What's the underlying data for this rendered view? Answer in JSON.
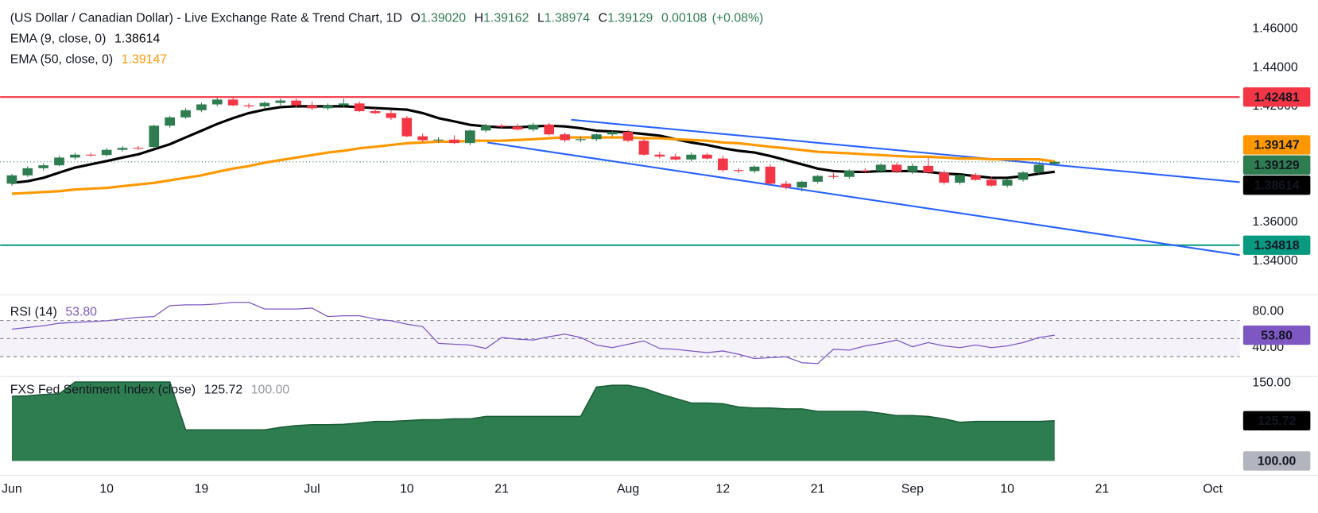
{
  "chart_data": [
    {
      "type": "candlestick",
      "title": "(US Dollar / Canadian Dollar) - Live Exchange Rate & Trend Chart, 1D",
      "ohlc_legend": [
        {
          "label": "O",
          "value": "1.39020"
        },
        {
          "label": "H",
          "value": "1.39162"
        },
        {
          "label": "L",
          "value": "1.38974"
        },
        {
          "label": "C",
          "value": "1.39129"
        }
      ],
      "change": "0.00108",
      "change_percent": "(+0.08%)",
      "categories": [
        "Jun",
        null,
        null,
        null,
        null,
        null,
        "10",
        null,
        null,
        null,
        null,
        null,
        "19",
        null,
        null,
        null,
        null,
        null,
        null,
        "Jul",
        null,
        null,
        null,
        null,
        null,
        "10",
        null,
        null,
        null,
        null,
        null,
        "21",
        null,
        null,
        null,
        null,
        null,
        null,
        null,
        "Aug",
        null,
        null,
        null,
        null,
        null,
        "12",
        null,
        null,
        null,
        null,
        null,
        "21",
        null,
        null,
        null,
        null,
        null,
        "Sep",
        null,
        null,
        null,
        null,
        null,
        "10",
        null,
        null,
        null,
        null,
        null,
        "21",
        null,
        null,
        null,
        null,
        null,
        null,
        "Oct",
        null
      ],
      "open": [
        1.38,
        1.3843,
        1.388,
        1.3895,
        1.3935,
        1.395,
        1.3948,
        1.3975,
        1.3985,
        1.399,
        1.41,
        1.4143,
        1.418,
        1.421,
        1.4235,
        1.4205,
        1.42,
        1.4218,
        1.423,
        1.4205,
        1.419,
        1.4205,
        1.4215,
        1.4175,
        1.4165,
        1.414,
        1.4045,
        1.4025,
        1.4028,
        1.401,
        1.4075,
        1.41,
        1.4095,
        1.408,
        1.4105,
        1.4055,
        1.4025,
        1.403,
        1.4055,
        1.4068,
        1.4022,
        1.395,
        1.394,
        1.3925,
        1.395,
        1.393,
        1.387,
        1.3865,
        1.3888,
        1.38,
        1.378,
        1.381,
        1.384,
        1.3835,
        1.3868,
        1.3865,
        1.3898,
        1.3862,
        1.3892,
        1.3858,
        1.3805,
        1.3845,
        1.382,
        1.379,
        1.382,
        1.3858,
        1.3902,
        null,
        null,
        null,
        null,
        null,
        null,
        null,
        null,
        null,
        null,
        null
      ],
      "high": [
        1.385,
        1.389,
        1.3905,
        1.3945,
        1.396,
        1.396,
        1.3985,
        1.3995,
        1.3995,
        1.4105,
        1.415,
        1.419,
        1.422,
        1.4245,
        1.4245,
        1.4215,
        1.4225,
        1.424,
        1.424,
        1.4225,
        1.4215,
        1.424,
        1.4225,
        1.419,
        1.418,
        1.415,
        1.406,
        1.404,
        1.405,
        1.408,
        1.411,
        1.411,
        1.411,
        1.4115,
        1.4115,
        1.4065,
        1.4045,
        1.406,
        1.4075,
        1.408,
        1.403,
        1.3965,
        1.3955,
        1.396,
        1.396,
        1.3945,
        1.388,
        1.3895,
        1.39,
        1.3815,
        1.3815,
        1.3845,
        1.3855,
        1.3875,
        1.388,
        1.3905,
        1.391,
        1.3905,
        1.3935,
        1.387,
        1.385,
        1.3855,
        1.3835,
        1.3825,
        1.3865,
        1.3905,
        1.39162,
        null,
        null,
        null,
        null,
        null,
        null,
        null,
        null,
        null,
        null,
        null
      ],
      "low": [
        1.379,
        1.3835,
        1.3868,
        1.389,
        1.3925,
        1.394,
        1.394,
        1.3965,
        1.3975,
        1.3985,
        1.409,
        1.4135,
        1.417,
        1.42,
        1.42,
        1.419,
        1.419,
        1.4205,
        1.4195,
        1.418,
        1.418,
        1.4195,
        1.417,
        1.416,
        1.413,
        1.404,
        1.4015,
        1.401,
        1.4005,
        1.4,
        1.4065,
        1.4085,
        1.4075,
        1.407,
        1.405,
        1.4015,
        1.4015,
        1.402,
        1.4045,
        1.4015,
        1.3945,
        1.393,
        1.392,
        1.3915,
        1.3925,
        1.386,
        1.3855,
        1.3855,
        1.3795,
        1.377,
        1.376,
        1.38,
        1.3825,
        1.3825,
        1.3855,
        1.3855,
        1.3855,
        1.385,
        1.385,
        1.3795,
        1.3795,
        1.3815,
        1.3785,
        1.378,
        1.381,
        1.385,
        1.38974,
        null,
        null,
        null,
        null,
        null,
        null,
        null,
        null,
        null,
        null,
        null
      ],
      "close": [
        1.3843,
        1.388,
        1.3895,
        1.3935,
        1.395,
        1.3948,
        1.3975,
        1.3985,
        1.3983,
        1.41,
        1.4143,
        1.418,
        1.421,
        1.4235,
        1.4205,
        1.42,
        1.4218,
        1.423,
        1.4205,
        1.419,
        1.4205,
        1.4215,
        1.4175,
        1.4165,
        1.414,
        1.4045,
        1.4025,
        1.4028,
        1.401,
        1.4075,
        1.41,
        1.4095,
        1.408,
        1.4105,
        1.4055,
        1.4025,
        1.403,
        1.4055,
        1.4068,
        1.4022,
        1.395,
        1.394,
        1.3925,
        1.395,
        1.393,
        1.387,
        1.3865,
        1.3888,
        1.38,
        1.378,
        1.381,
        1.384,
        1.3835,
        1.3868,
        1.3865,
        1.3898,
        1.3862,
        1.3892,
        1.3858,
        1.3805,
        1.3845,
        1.382,
        1.379,
        1.382,
        1.3858,
        1.3898,
        1.39129,
        null,
        null,
        null,
        null,
        null,
        null,
        null,
        null,
        null,
        null,
        null
      ],
      "up_color": "#2e7d50",
      "down_color": "#f23645",
      "series": [
        {
          "name": "EMA (9, close, 0)",
          "value_label": "1.38614",
          "color": "#000000",
          "values": [
            1.3804,
            1.3813,
            1.383,
            1.3857,
            1.3883,
            1.39,
            1.3917,
            1.3935,
            1.3952,
            1.3978,
            1.4004,
            1.4039,
            1.4074,
            1.4109,
            1.4139,
            1.4165,
            1.4183,
            1.4196,
            1.42,
            1.42,
            1.42,
            1.42,
            1.4196,
            1.4191,
            1.4187,
            1.4183,
            1.4165,
            1.4139,
            1.4122,
            1.4104,
            1.4096,
            1.4091,
            1.4091,
            1.4096,
            1.41,
            1.4096,
            1.4087,
            1.4074,
            1.407,
            1.4065,
            1.4057,
            1.4048,
            1.403,
            1.4013,
            1.4,
            1.3983,
            1.397,
            1.3961,
            1.3943,
            1.3922,
            1.39,
            1.3878,
            1.3865,
            1.3861,
            1.3861,
            1.3865,
            1.3865,
            1.3865,
            1.3861,
            1.3852,
            1.3848,
            1.3839,
            1.383,
            1.383,
            1.3839,
            1.3852,
            1.38614,
            null,
            null,
            null,
            null,
            null,
            null,
            null,
            null,
            null,
            null,
            null
          ]
        },
        {
          "name": "EMA (50, close, 0)",
          "value_label": "1.39147",
          "color": "#ff9800",
          "values": [
            1.3748,
            1.3752,
            1.3757,
            1.3761,
            1.377,
            1.3774,
            1.3778,
            1.3787,
            1.3796,
            1.3804,
            1.3817,
            1.383,
            1.3843,
            1.3861,
            1.3878,
            1.3891,
            1.3909,
            1.3922,
            1.3935,
            1.3948,
            1.3961,
            1.397,
            1.3983,
            1.3991,
            1.4,
            1.4009,
            1.4013,
            1.4017,
            1.4017,
            1.4022,
            1.4022,
            1.4022,
            1.4026,
            1.403,
            1.4035,
            1.4039,
            1.4039,
            1.4039,
            1.4039,
            1.4039,
            1.4035,
            1.4035,
            1.403,
            1.4026,
            1.4022,
            1.4013,
            1.4009,
            1.4,
            1.3991,
            1.3983,
            1.3974,
            1.3965,
            1.3961,
            1.3957,
            1.3952,
            1.3948,
            1.3943,
            1.3939,
            1.3939,
            1.3935,
            1.393,
            1.393,
            1.3926,
            1.3926,
            1.3926,
            1.3926,
            1.39147,
            null,
            null,
            null,
            null,
            null,
            null,
            null,
            null,
            null,
            null,
            null
          ]
        }
      ],
      "hlines": [
        {
          "value": 1.42481,
          "label": "1.42481",
          "color": "#f23645"
        },
        {
          "value": 1.34818,
          "label": "1.34818",
          "color": "#089981"
        }
      ],
      "trendlines": [
        {
          "x": [
            35.4,
            82.7
          ],
          "values": [
            1.41304,
            1.37696
          ],
          "color": "#2962ff"
        },
        {
          "x": [
            30.1,
            82.7
          ],
          "values": [
            1.4013,
            1.33696
          ],
          "color": "#2962ff"
        }
      ],
      "ylim": [
        1.323,
        1.475
      ],
      "yticks": [
        {
          "value": 1.46,
          "label": "1.46000"
        },
        {
          "value": 1.44,
          "label": "1.44000"
        },
        {
          "value": 1.42,
          "label": "1.42000"
        },
        {
          "value": 1.36,
          "label": "1.36000"
        },
        {
          "value": 1.34,
          "label": "1.34000"
        }
      ],
      "grid": false
    },
    {
      "type": "line",
      "title": "RSI (14)",
      "value_label": "53.80",
      "color": "#7e57c2",
      "values": [
        60.5,
        62.3,
        64.2,
        67.0,
        67.9,
        68.8,
        69.8,
        71.6,
        73.5,
        74.4,
        86.5,
        87.4,
        87.4,
        88.4,
        90.2,
        90.2,
        82.8,
        82.8,
        82.8,
        83.7,
        74.4,
        75.3,
        75.3,
        71.6,
        69.8,
        66.0,
        63.3,
        44.7,
        43.7,
        42.8,
        39.1,
        51.2,
        49.3,
        48.4,
        52.1,
        54.9,
        51.2,
        42.8,
        40.0,
        43.7,
        47.4,
        39.1,
        38.1,
        36.3,
        34.4,
        36.3,
        32.6,
        27.9,
        28.8,
        29.8,
        23.3,
        22.3,
        38.1,
        37.2,
        41.9,
        44.7,
        48.4,
        40.9,
        45.6,
        41.9,
        40.0,
        42.8,
        40.0,
        41.9,
        45.6,
        51.2,
        53.8,
        null,
        null,
        null,
        null,
        null,
        null,
        null,
        null,
        null,
        null,
        null
      ],
      "levels": [
        70,
        50,
        30
      ],
      "ylim": [
        9.3,
        97.7
      ],
      "yticks": [
        {
          "value": 80,
          "label": "80.00"
        },
        {
          "value": 40,
          "label": "40.00"
        }
      ]
    },
    {
      "type": "area",
      "title": "FXS Fed Sentiment Index (close)",
      "value_label": "125.72",
      "color": "#2e7d50",
      "values": [
        141.4,
        141.7,
        142.5,
        143.0,
        150.5,
        150.5,
        150.5,
        150.5,
        150.5,
        150.5,
        150.5,
        119.9,
        119.9,
        119.9,
        119.9,
        119.9,
        119.9,
        121.5,
        122.6,
        123.2,
        123.2,
        123.5,
        124.3,
        125.3,
        125.3,
        125.8,
        126.4,
        126.4,
        126.9,
        126.9,
        128.5,
        128.5,
        128.5,
        128.5,
        128.5,
        128.5,
        128.5,
        147.3,
        148.4,
        148.4,
        146.5,
        143.0,
        140.0,
        137.1,
        137.1,
        136.6,
        134.5,
        133.9,
        133.9,
        133.3,
        133.3,
        131.7,
        131.7,
        131.7,
        131.7,
        130.5,
        129.0,
        129.0,
        128.5,
        127.0,
        124.7,
        125.3,
        125.3,
        125.3,
        125.3,
        125.3,
        125.72,
        null,
        null,
        null,
        null,
        null,
        null,
        null,
        null,
        null,
        null,
        null
      ],
      "baseline": {
        "value": 100,
        "label": "100.00",
        "color": "#b2b5be"
      },
      "ylim": [
        91.4,
        153.2
      ],
      "yticks": [
        {
          "value": 150,
          "label": "150.00"
        }
      ]
    }
  ]
}
